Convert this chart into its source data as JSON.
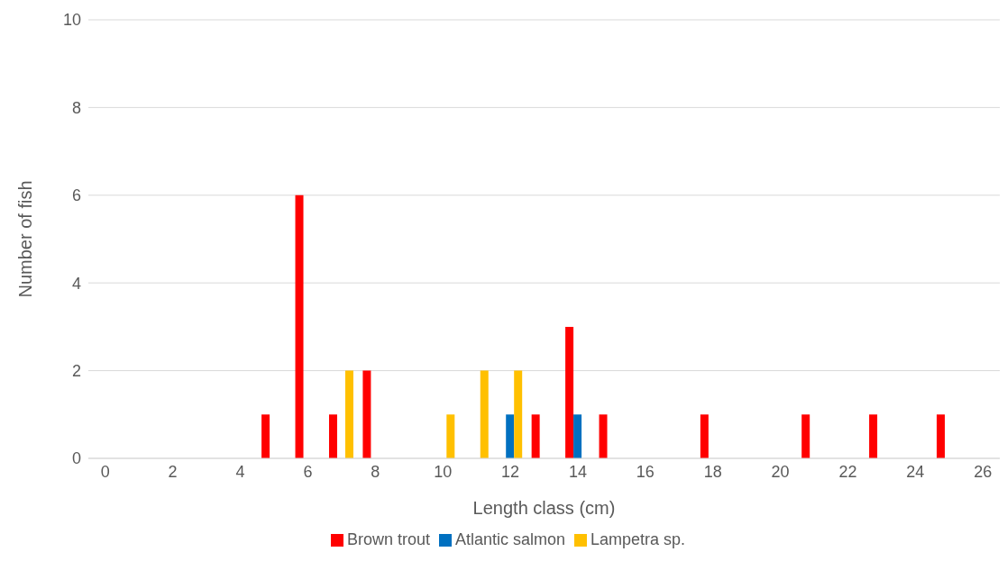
{
  "chart_data": {
    "type": "bar",
    "xlabel": "Length class (cm)",
    "ylabel": "Number of fish",
    "x": [
      5,
      6,
      7,
      8,
      10,
      11,
      12,
      13,
      14,
      15,
      18,
      21,
      23,
      25
    ],
    "xlim": [
      -0.5,
      26.5
    ],
    "xticks": [
      0,
      2,
      4,
      6,
      8,
      10,
      12,
      14,
      16,
      18,
      20,
      22,
      24,
      26
    ],
    "series": [
      {
        "name": "Brown trout",
        "color": "#ff0000",
        "values": [
          1,
          6,
          1,
          2,
          null,
          null,
          null,
          1,
          3,
          1,
          1,
          1,
          1,
          1
        ]
      },
      {
        "name": "Atlantic salmon",
        "color": "#0070c0",
        "values": [
          null,
          null,
          null,
          null,
          null,
          null,
          1,
          null,
          1,
          null,
          null,
          null,
          null,
          null
        ]
      },
      {
        "name": "Lampetra sp.",
        "color": "#ffc000",
        "values": [
          null,
          null,
          2,
          null,
          1,
          2,
          2,
          null,
          null,
          null,
          null,
          null,
          null,
          null
        ]
      }
    ],
    "ylim": [
      0,
      10
    ],
    "yticks": [
      0,
      2,
      4,
      6,
      8,
      10
    ],
    "grid": "y",
    "legend": "bottom"
  }
}
